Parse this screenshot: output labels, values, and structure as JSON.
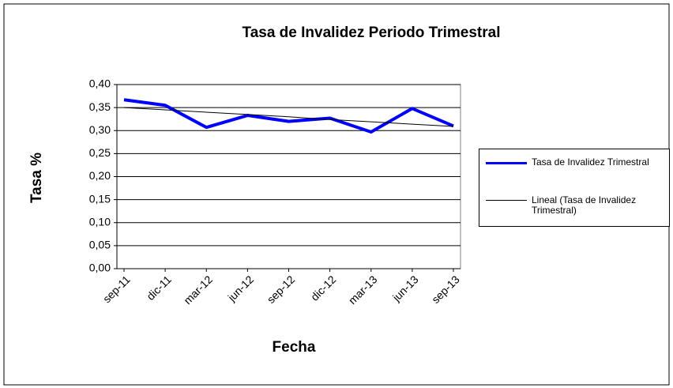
{
  "chart_data": {
    "type": "line",
    "title": "Tasa de Invalidez Periodo Trimestral",
    "x_label": "Fecha",
    "y_label": "Tasa %",
    "categories": [
      "sep-11",
      "dic-11",
      "mar-12",
      "jun-12",
      "sep-12",
      "dic-12",
      "mar-13",
      "jun-13",
      "sep-13"
    ],
    "series": [
      {
        "name": "Tasa de Invalidez Trimestral",
        "color": "#0000ff",
        "values": [
          0.367,
          0.355,
          0.307,
          0.333,
          0.32,
          0.327,
          0.297,
          0.348,
          0.31
        ]
      },
      {
        "name": "Lineal (Tasa de Invalidez Trimestral)",
        "color": "#000000",
        "values": [
          0.35,
          0.345,
          0.34,
          0.335,
          0.33,
          0.324,
          0.319,
          0.314,
          0.309
        ]
      }
    ],
    "ylim": [
      0,
      0.4
    ],
    "yticks": [
      {
        "value": 0,
        "label": "0,00"
      },
      {
        "value": 0.05,
        "label": "0,05"
      },
      {
        "value": 0.1,
        "label": "0,10"
      },
      {
        "value": 0.15,
        "label": "0,15"
      },
      {
        "value": 0.2,
        "label": "0,20"
      },
      {
        "value": 0.25,
        "label": "0,25"
      },
      {
        "value": 0.3,
        "label": "0,30"
      },
      {
        "value": 0.35,
        "label": "0,35"
      },
      {
        "value": 0.4,
        "label": "0,40"
      }
    ],
    "grid": true,
    "legend": "right"
  }
}
